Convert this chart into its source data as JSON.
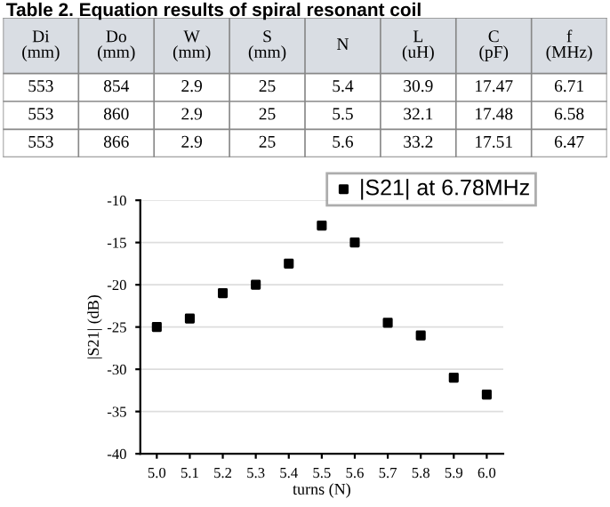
{
  "chart_data": [
    {
      "type": "other",
      "title": "Table 2. Equation results of spiral resonant coil",
      "categories": [
        "Di\n(mm)",
        "Do\n(mm)",
        "W\n(mm)",
        "S\n(mm)",
        "N",
        "L\n(uH)",
        "C\n(pF)",
        "f\n(MHz)"
      ],
      "cell_labels": [
        [
          "553",
          "854",
          "2.9",
          "25",
          "5.4",
          "30.9",
          "17.47",
          "6.71"
        ],
        [
          "553",
          "860",
          "2.9",
          "25",
          "5.5",
          "32.1",
          "17.48",
          "6.58"
        ],
        [
          "553",
          "866",
          "2.9",
          "25",
          "5.6",
          "33.2",
          "17.51",
          "6.47"
        ]
      ]
    },
    {
      "type": "scatter",
      "xlabel": "turns (N)",
      "ylabel": "|S21| (dB)",
      "x": [
        5.0,
        5.1,
        5.2,
        5.3,
        5.4,
        5.5,
        5.6,
        5.7,
        5.8,
        5.9,
        6.0
      ],
      "series": [
        {
          "name": "|S21| at 6.78MHz",
          "color": "#000000",
          "values": [
            -25,
            -24,
            -21,
            -20,
            -17.5,
            -13,
            -15,
            -24.5,
            -26,
            -31,
            -33
          ]
        }
      ],
      "xlim": [
        4.95,
        6.05
      ],
      "ylim": [
        -40,
        -10
      ],
      "xticks": [
        {
          "value": 5.0,
          "label": "5.0"
        },
        5.1,
        5.2,
        5.3,
        5.4,
        5.5,
        5.6,
        5.7,
        5.8,
        5.9,
        {
          "value": 6.0,
          "label": "6.0"
        }
      ],
      "yticks": [
        -40,
        -35,
        -30,
        -25,
        -20,
        -15,
        -10
      ],
      "grid": "y",
      "legend": "top right",
      "marker": "square"
    }
  ]
}
